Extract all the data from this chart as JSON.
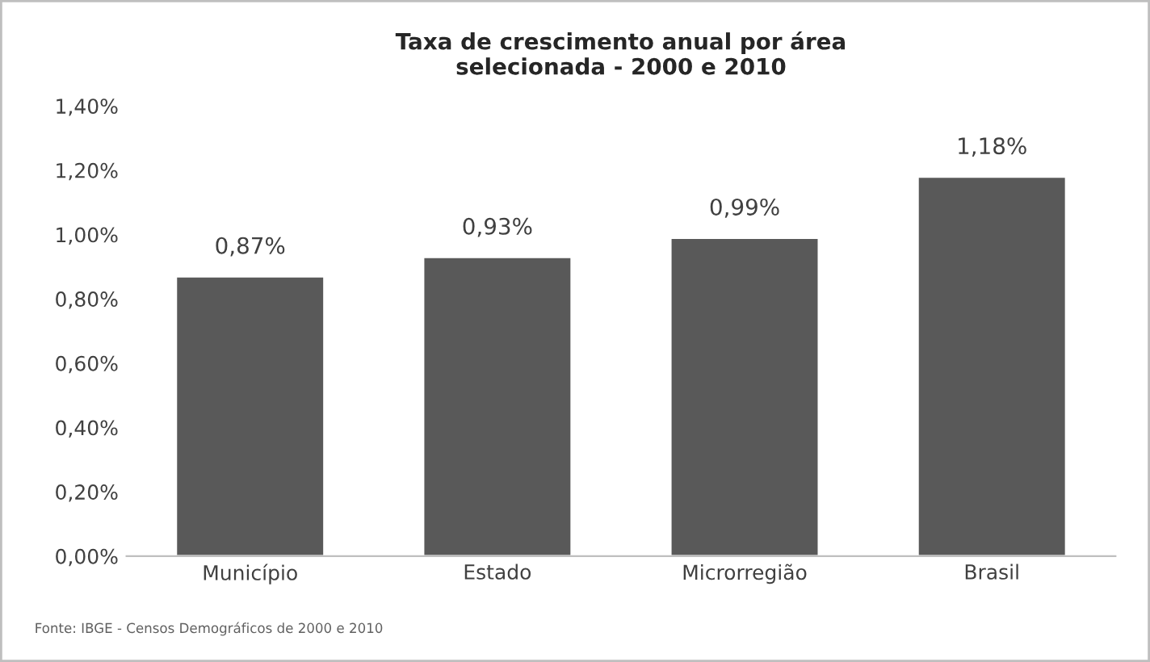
{
  "chart_data": {
    "type": "bar",
    "title": "Taxa de crescimento anual por área\nselecionada - 2000 e 2010",
    "categories": [
      "Município",
      "Estado",
      "Microrregião",
      "Brasil"
    ],
    "values": [
      0.87,
      0.93,
      0.99,
      1.18
    ],
    "color": "#595959",
    "value_labels": [
      "0,87%",
      "0,93%",
      "0,99%",
      "1,18%"
    ],
    "ylim": [
      0,
      1.4
    ],
    "yticks": [
      {
        "value": 0,
        "label": "0,00%"
      },
      {
        "value": 0.2,
        "label": "0,20%"
      },
      {
        "value": 0.4,
        "label": "0,40%"
      },
      {
        "value": 0.6,
        "label": "0,60%"
      },
      {
        "value": 0.8,
        "label": "0,80%"
      },
      {
        "value": 1.0,
        "label": "1,00%"
      },
      {
        "value": 1.2,
        "label": "1,20%"
      },
      {
        "value": 1.4,
        "label": "1,40%"
      }
    ],
    "grid": false,
    "annotations": [
      "Fonte: IBGE - Censos Demográficos de 2000 e 2010"
    ]
  }
}
